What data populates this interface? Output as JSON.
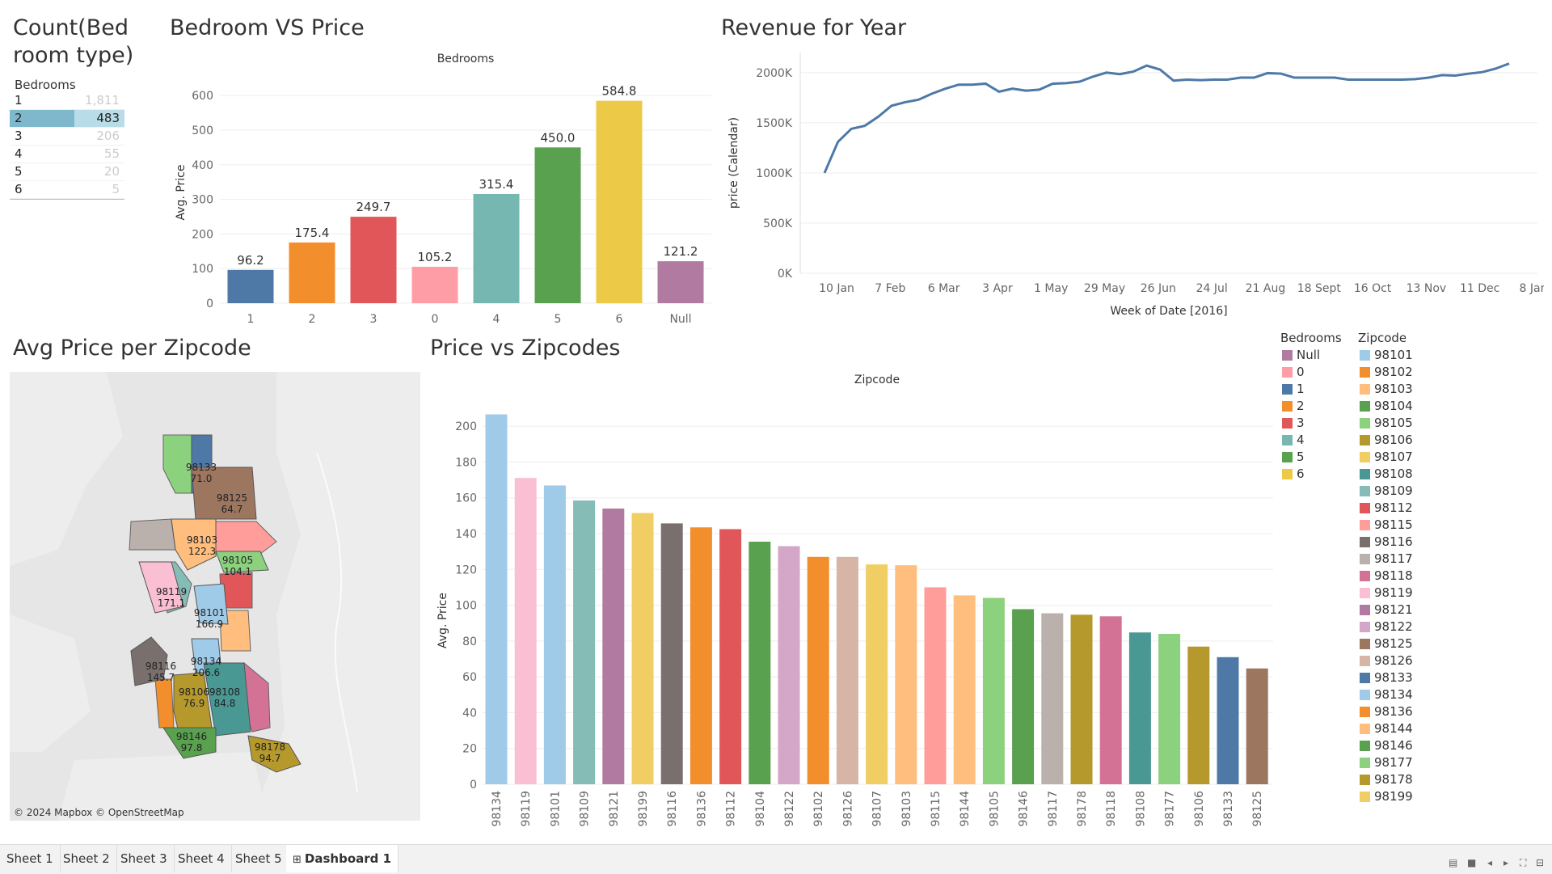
{
  "titles": {
    "count": "Count(Bed room type)",
    "count_line1": "Count(Bed",
    "count_line2": "room type)",
    "bedroom_vs_price": "Bedroom VS Price",
    "revenue": "Revenue for Year",
    "avg_price_zip": "Avg Price per Zipcode",
    "price_vs_zip": "Price vs Zipcodes"
  },
  "count_table": {
    "header": "Bedrooms",
    "rows": [
      {
        "label": "1",
        "value": "1,811"
      },
      {
        "label": "2",
        "value": "483",
        "selected": true
      },
      {
        "label": "3",
        "value": "206"
      },
      {
        "label": "4",
        "value": "55"
      },
      {
        "label": "5",
        "value": "20"
      },
      {
        "label": "6",
        "value": "5"
      }
    ]
  },
  "colors": {
    "null": "#b07aa1",
    "0": "#ff9da7",
    "1": "#4e79a7",
    "2": "#f28e2b",
    "3": "#e15759",
    "4": "#76b7b2",
    "5": "#59a14f",
    "6": "#edc948",
    "line": "#4e79a7",
    "grid": "#eeeeee",
    "axis_text": "#666666"
  },
  "chart_data": [
    {
      "type": "bar",
      "title": "Bedroom VS Price",
      "header": "Bedrooms",
      "ylabel": "Avg. Price",
      "categories": [
        "1",
        "2",
        "3",
        "0",
        "4",
        "5",
        "6",
        "Null"
      ],
      "values": [
        96.2,
        175.4,
        249.7,
        105.2,
        315.4,
        450.0,
        584.8,
        121.2
      ],
      "labels": [
        "96.2",
        "175.4",
        "249.7",
        "105.2",
        "315.4",
        "450.0",
        "584.8",
        "121.2"
      ],
      "colors": [
        "#4e79a7",
        "#f28e2b",
        "#e15759",
        "#ff9da7",
        "#76b7b2",
        "#59a14f",
        "#edc948",
        "#b07aa1"
      ],
      "yticks": [
        0,
        100,
        200,
        300,
        400,
        500,
        600
      ],
      "ylim": [
        0,
        640
      ]
    },
    {
      "type": "line",
      "title": "Revenue for Year",
      "xlabel": "Week of Date [2016]",
      "ylabel": "price (Calendar)",
      "xticks": [
        "10 Jan",
        "7 Feb",
        "6 Mar",
        "3 Apr",
        "1 May",
        "29 May",
        "26 Jun",
        "24 Jul",
        "21 Aug",
        "18 Sept",
        "16 Oct",
        "13 Nov",
        "11 Dec",
        "8 Jan"
      ],
      "yticks": [
        "0K",
        "500K",
        "1000K",
        "1500K",
        "2000K"
      ],
      "ytick_values": [
        0,
        500,
        1000,
        1500,
        2000
      ],
      "ylim": [
        0,
        2200
      ],
      "values_k": [
        1000,
        1310,
        1440,
        1470,
        1560,
        1670,
        1705,
        1730,
        1790,
        1840,
        1880,
        1880,
        1890,
        1810,
        1840,
        1820,
        1830,
        1890,
        1895,
        1910,
        1960,
        2000,
        1985,
        2010,
        2070,
        2030,
        1920,
        1930,
        1925,
        1930,
        1930,
        1950,
        1950,
        1995,
        1990,
        1950,
        1950,
        1950,
        1950,
        1930,
        1930,
        1930,
        1930,
        1930,
        1935,
        1950,
        1975,
        1970,
        1990,
        2005,
        2040,
        2090
      ]
    },
    {
      "type": "bar",
      "title": "Price vs Zipcodes",
      "header": "Zipcode",
      "ylabel": "Avg. Price",
      "categories": [
        "98134",
        "98119",
        "98101",
        "98109",
        "98121",
        "98199",
        "98116",
        "98136",
        "98112",
        "98104",
        "98122",
        "98102",
        "98126",
        "98107",
        "98103",
        "98115",
        "98144",
        "98105",
        "98146",
        "98117",
        "98178",
        "98118",
        "98108",
        "98177",
        "98106",
        "98133",
        "98125"
      ],
      "values": [
        206.6,
        171.1,
        166.9,
        158.5,
        154.0,
        151.5,
        145.7,
        143.5,
        142.5,
        135.5,
        133.0,
        127.0,
        127.0,
        122.8,
        122.3,
        110.0,
        105.5,
        104.1,
        97.8,
        95.5,
        94.7,
        93.8,
        84.8,
        84.0,
        76.9,
        71.0,
        64.7
      ],
      "colors": [
        "#a0cbe8",
        "#fabfd2",
        "#a0cbe8",
        "#86bcb6",
        "#b07aa1",
        "#f1ce63",
        "#79706e",
        "#f28e2b",
        "#e15759",
        "#59a14f",
        "#d4a6c8",
        "#f28e2b",
        "#d7b5a6",
        "#f1ce63",
        "#ffbe7d",
        "#ff9d9a",
        "#ffbe7d",
        "#8cd17d",
        "#59a14f",
        "#bab0ac",
        "#b6992d",
        "#d37295",
        "#499894",
        "#8cd17d",
        "#b6992d",
        "#4e79a7",
        "#9d7660"
      ],
      "yticks": [
        0,
        20,
        40,
        60,
        80,
        100,
        120,
        140,
        160,
        180,
        200
      ],
      "ylim": [
        0,
        210
      ]
    }
  ],
  "map": {
    "attribution": "© 2024 Mapbox © OpenStreetMap",
    "regions": [
      {
        "zip": "98133",
        "value": "71.0",
        "color": "#4e79a7"
      },
      {
        "zip": "98125",
        "value": "64.7",
        "color": "#9d7660"
      },
      {
        "zip": "98103",
        "value": "122.3",
        "color": "#ffbe7d"
      },
      {
        "zip": "98105",
        "value": "104.1",
        "color": "#8cd17d"
      },
      {
        "zip": "98119",
        "value": "171.1",
        "color": "#fabfd2"
      },
      {
        "zip": "98101",
        "value": "166.9",
        "color": "#a0cbe8"
      },
      {
        "zip": "98116",
        "value": "145.7",
        "color": "#79706e"
      },
      {
        "zip": "98134",
        "value": "206.6",
        "color": "#a0cbe8"
      },
      {
        "zip": "98106",
        "value": "76.9",
        "color": "#b6992d"
      },
      {
        "zip": "98108",
        "value": "84.8",
        "color": "#499894"
      },
      {
        "zip": "98146",
        "value": "97.8",
        "color": "#59a14f"
      },
      {
        "zip": "98178",
        "value": "94.7",
        "color": "#b6992d"
      }
    ]
  },
  "legend_bedrooms": {
    "title": "Bedrooms",
    "items": [
      {
        "label": "Null",
        "color": "#b07aa1"
      },
      {
        "label": "0",
        "color": "#ff9da7"
      },
      {
        "label": "1",
        "color": "#4e79a7"
      },
      {
        "label": "2",
        "color": "#f28e2b"
      },
      {
        "label": "3",
        "color": "#e15759"
      },
      {
        "label": "4",
        "color": "#76b7b2"
      },
      {
        "label": "5",
        "color": "#59a14f"
      },
      {
        "label": "6",
        "color": "#edc948"
      }
    ]
  },
  "legend_zipcode": {
    "title": "Zipcode",
    "items": [
      {
        "label": "98101",
        "color": "#a0cbe8"
      },
      {
        "label": "98102",
        "color": "#f28e2b"
      },
      {
        "label": "98103",
        "color": "#ffbe7d"
      },
      {
        "label": "98104",
        "color": "#59a14f"
      },
      {
        "label": "98105",
        "color": "#8cd17d"
      },
      {
        "label": "98106",
        "color": "#b6992d"
      },
      {
        "label": "98107",
        "color": "#f1ce63"
      },
      {
        "label": "98108",
        "color": "#499894"
      },
      {
        "label": "98109",
        "color": "#86bcb6"
      },
      {
        "label": "98112",
        "color": "#e15759"
      },
      {
        "label": "98115",
        "color": "#ff9d9a"
      },
      {
        "label": "98116",
        "color": "#79706e"
      },
      {
        "label": "98117",
        "color": "#bab0ac"
      },
      {
        "label": "98118",
        "color": "#d37295"
      },
      {
        "label": "98119",
        "color": "#fabfd2"
      },
      {
        "label": "98121",
        "color": "#b07aa1"
      },
      {
        "label": "98122",
        "color": "#d4a6c8"
      },
      {
        "label": "98125",
        "color": "#9d7660"
      },
      {
        "label": "98126",
        "color": "#d7b5a6"
      },
      {
        "label": "98133",
        "color": "#4e79a7"
      },
      {
        "label": "98134",
        "color": "#a0cbe8"
      },
      {
        "label": "98136",
        "color": "#f28e2b"
      },
      {
        "label": "98144",
        "color": "#ffbe7d"
      },
      {
        "label": "98146",
        "color": "#59a14f"
      },
      {
        "label": "98177",
        "color": "#8cd17d"
      },
      {
        "label": "98178",
        "color": "#b6992d"
      },
      {
        "label": "98199",
        "color": "#f1ce63"
      }
    ]
  },
  "tabs": [
    {
      "label": "Sheet 1"
    },
    {
      "label": "Sheet 2"
    },
    {
      "label": "Sheet 3"
    },
    {
      "label": "Sheet 4"
    },
    {
      "label": "Sheet 5"
    },
    {
      "label": "Dashboard 1",
      "active": true,
      "icon": "grid-icon"
    }
  ]
}
